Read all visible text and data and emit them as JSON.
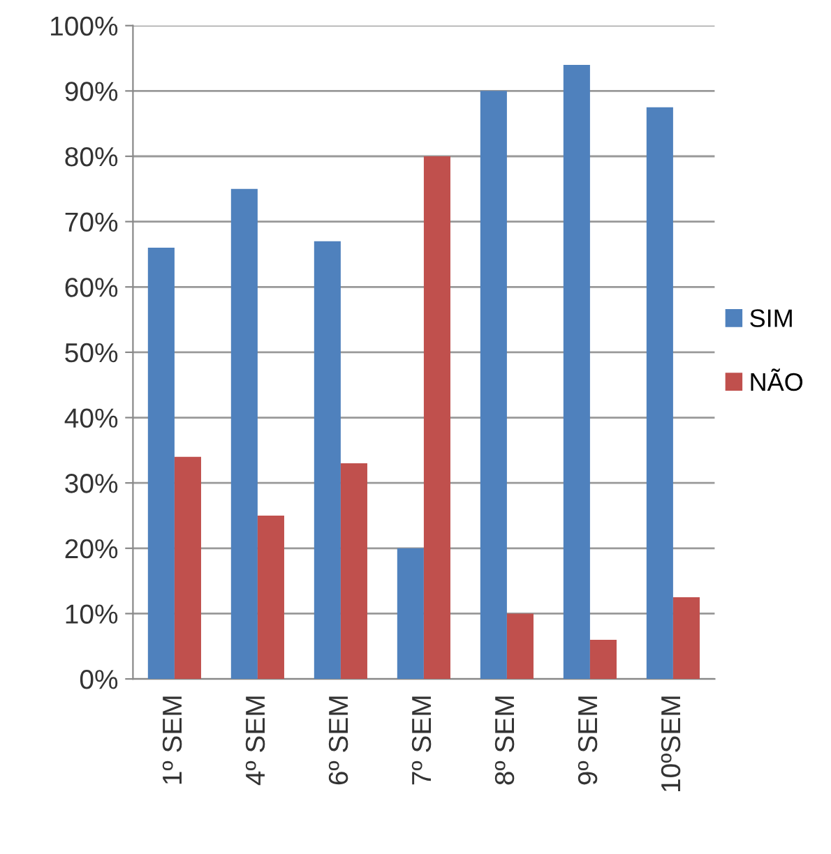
{
  "chart_data": {
    "type": "bar",
    "categories": [
      "1º SEM",
      "4º SEM",
      "6º SEM",
      "7º SEM",
      "8º SEM",
      "9º SEM",
      "10ºSEM"
    ],
    "series": [
      {
        "name": "SIM",
        "color": "#4f81bd",
        "values": [
          66,
          75,
          67,
          20,
          90,
          94,
          87.5
        ]
      },
      {
        "name": "NÃO",
        "color": "#c0504d",
        "values": [
          34,
          25,
          33,
          80,
          10,
          6,
          12.5
        ]
      }
    ],
    "ylim": [
      0,
      100
    ],
    "yticks": [
      {
        "value": 0,
        "label": "0%"
      },
      {
        "value": 10,
        "label": "10%"
      },
      {
        "value": 20,
        "label": "20%"
      },
      {
        "value": 30,
        "label": "30%"
      },
      {
        "value": 40,
        "label": "40%"
      },
      {
        "value": 50,
        "label": "50%"
      },
      {
        "value": 60,
        "label": "60%"
      },
      {
        "value": 70,
        "label": "70%"
      },
      {
        "value": 80,
        "label": "80%"
      },
      {
        "value": 90,
        "label": "90%"
      },
      {
        "value": 100,
        "label": "100%"
      }
    ],
    "grid": "y",
    "legend": "right"
  }
}
